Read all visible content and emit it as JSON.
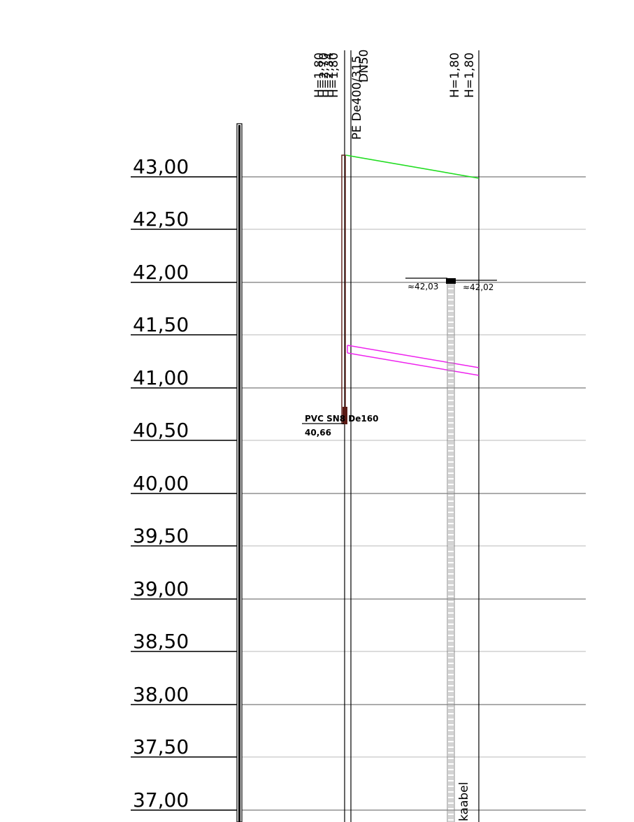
{
  "elevation_labels": [
    "43,00",
    "42,50",
    "42,00",
    "41,50",
    "41,00",
    "40,50",
    "40,00",
    "39,50",
    "39,00",
    "38,50",
    "38,00",
    "37,50",
    "37,00"
  ],
  "pipe_labels": {
    "h_stack_left": [
      "H=1,80",
      "H=2,70",
      "H=2,34",
      "H=1,80"
    ],
    "pipe_name": "PE De400/315",
    "pipe_dn": "DN50",
    "h_stack_right": [
      "H=1,80",
      "H=1,80"
    ]
  },
  "sewer": {
    "label": "PVC SN8 De160",
    "level": "40,66"
  },
  "cable": {
    "label": "kaabel",
    "level_left": "≈42,03",
    "level_right": "≈42,02"
  },
  "colors": {
    "grid_major": "#7a7a7a",
    "grid_minor": "#c8c8c8",
    "line_green": "#22dd22",
    "line_magenta": "#ee22ee",
    "pipe_brown": "#5a1a14"
  }
}
